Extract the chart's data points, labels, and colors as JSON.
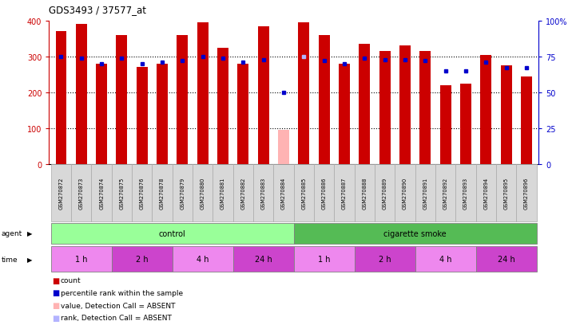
{
  "title": "GDS3493 / 37577_at",
  "samples": [
    "GSM270872",
    "GSM270873",
    "GSM270874",
    "GSM270875",
    "GSM270876",
    "GSM270878",
    "GSM270879",
    "GSM270880",
    "GSM270881",
    "GSM270882",
    "GSM270883",
    "GSM270884",
    "GSM270885",
    "GSM270886",
    "GSM270887",
    "GSM270888",
    "GSM270889",
    "GSM270890",
    "GSM270891",
    "GSM270892",
    "GSM270893",
    "GSM270894",
    "GSM270895",
    "GSM270896"
  ],
  "counts": [
    370,
    390,
    280,
    360,
    270,
    280,
    360,
    395,
    325,
    280,
    385,
    95,
    395,
    360,
    280,
    335,
    315,
    330,
    315,
    220,
    225,
    305,
    275,
    245
  ],
  "ranks": [
    75,
    74,
    70,
    74,
    70,
    71,
    72,
    75,
    74,
    71,
    73,
    50,
    75,
    72,
    70,
    74,
    73,
    73,
    72,
    65,
    65,
    71,
    67,
    67
  ],
  "absent": [
    false,
    false,
    false,
    false,
    false,
    false,
    false,
    false,
    false,
    false,
    false,
    true,
    false,
    false,
    false,
    false,
    false,
    false,
    false,
    false,
    false,
    false,
    false,
    false
  ],
  "absent_rank": [
    false,
    false,
    false,
    false,
    false,
    false,
    false,
    false,
    false,
    false,
    false,
    false,
    true,
    false,
    false,
    false,
    false,
    false,
    false,
    false,
    false,
    false,
    false,
    false
  ],
  "bar_color_present": "#cc0000",
  "bar_color_absent": "#ffb3b3",
  "rank_color_present": "#0000cc",
  "rank_color_absent": "#b3b3ff",
  "ylim_left": [
    0,
    400
  ],
  "ylim_right": [
    0,
    100
  ],
  "yticks_left": [
    0,
    100,
    200,
    300,
    400
  ],
  "yticks_right": [
    0,
    25,
    50,
    75,
    100
  ],
  "agent_groups": [
    {
      "label": "control",
      "start": 0,
      "end": 11,
      "color": "#99ff99"
    },
    {
      "label": "cigarette smoke",
      "start": 12,
      "end": 23,
      "color": "#55bb55"
    }
  ],
  "time_groups": [
    {
      "label": "1 h",
      "start": 0,
      "end": 2,
      "color": "#ee88ee"
    },
    {
      "label": "2 h",
      "start": 3,
      "end": 5,
      "color": "#cc44cc"
    },
    {
      "label": "4 h",
      "start": 6,
      "end": 8,
      "color": "#ee88ee"
    },
    {
      "label": "24 h",
      "start": 9,
      "end": 11,
      "color": "#cc44cc"
    },
    {
      "label": "1 h",
      "start": 12,
      "end": 14,
      "color": "#ee88ee"
    },
    {
      "label": "2 h",
      "start": 15,
      "end": 17,
      "color": "#cc44cc"
    },
    {
      "label": "4 h",
      "start": 18,
      "end": 20,
      "color": "#ee88ee"
    },
    {
      "label": "24 h",
      "start": 21,
      "end": 23,
      "color": "#cc44cc"
    }
  ],
  "legend_items": [
    {
      "label": "count",
      "color": "#cc0000"
    },
    {
      "label": "percentile rank within the sample",
      "color": "#0000cc"
    },
    {
      "label": "value, Detection Call = ABSENT",
      "color": "#ffb3b3"
    },
    {
      "label": "rank, Detection Call = ABSENT",
      "color": "#b3b3ff"
    }
  ],
  "background_color": "#ffffff",
  "bar_width": 0.55
}
